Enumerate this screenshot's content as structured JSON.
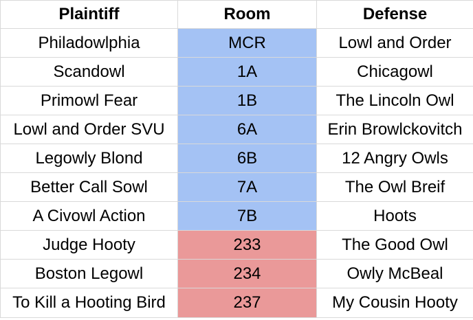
{
  "headers": {
    "plaintiff": "Plaintiff",
    "room": "Room",
    "defense": "Defense"
  },
  "room_colors": {
    "blue": "#a4c2f4",
    "red": "#ea9999"
  },
  "rows": [
    {
      "plaintiff": "Philadowlphia",
      "room": "MCR",
      "defense": "Lowl and Order",
      "room_color": "#a4c2f4"
    },
    {
      "plaintiff": "Scandowl",
      "room": "1A",
      "defense": "Chicagowl",
      "room_color": "#a4c2f4"
    },
    {
      "plaintiff": "Primowl Fear",
      "room": "1B",
      "defense": "The Lincoln Owl",
      "room_color": "#a4c2f4"
    },
    {
      "plaintiff": "Lowl and Order SVU",
      "room": "6A",
      "defense": "Erin Browlckovitch",
      "room_color": "#a4c2f4"
    },
    {
      "plaintiff": "Legowly Blond",
      "room": "6B",
      "defense": "12 Angry Owls",
      "room_color": "#a4c2f4"
    },
    {
      "plaintiff": "Better Call Sowl",
      "room": "7A",
      "defense": "The Owl Breif",
      "room_color": "#a4c2f4"
    },
    {
      "plaintiff": "A Civowl Action",
      "room": "7B",
      "defense": "Hoots",
      "room_color": "#a4c2f4"
    },
    {
      "plaintiff": "Judge Hooty",
      "room": "233",
      "defense": "The Good Owl",
      "room_color": "#ea9999"
    },
    {
      "plaintiff": "Boston Legowl",
      "room": "234",
      "defense": "Owly McBeal",
      "room_color": "#ea9999"
    },
    {
      "plaintiff": "To Kill a Hooting Bird",
      "room": "237",
      "defense": "My Cousin Hooty",
      "room_color": "#ea9999"
    }
  ]
}
